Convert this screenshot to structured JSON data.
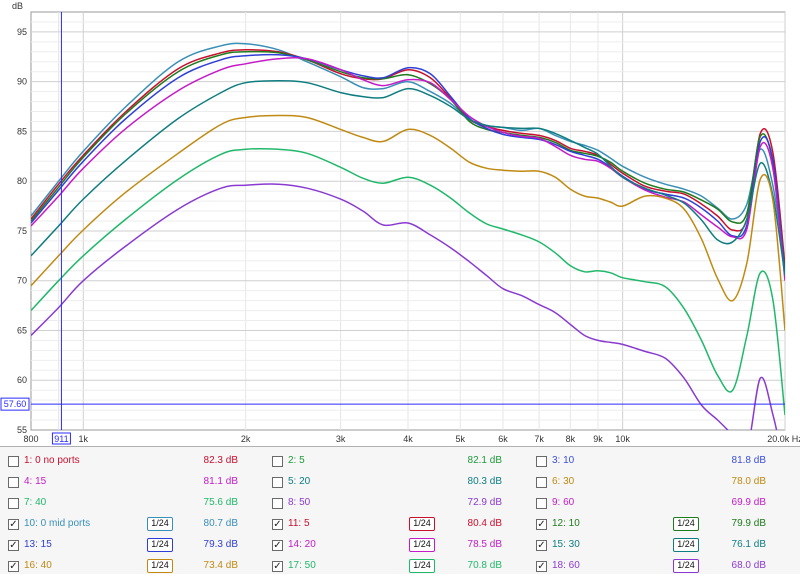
{
  "chart_data": {
    "type": "line",
    "ylabel": "dB",
    "xscale": "log",
    "xlim": [
      800,
      20000
    ],
    "ylim": [
      55,
      97
    ],
    "y_ticks": [
      55,
      60,
      65,
      70,
      75,
      80,
      85,
      90,
      95
    ],
    "x_ticks": [
      {
        "v": 800,
        "label": "800"
      },
      {
        "v": 1000,
        "label": "1k"
      },
      {
        "v": 2000,
        "label": "2k"
      },
      {
        "v": 3000,
        "label": "3k"
      },
      {
        "v": 4000,
        "label": "4k"
      },
      {
        "v": 5000,
        "label": "5k"
      },
      {
        "v": 6000,
        "label": "6k"
      },
      {
        "v": 7000,
        "label": "7k"
      },
      {
        "v": 8000,
        "label": "8k"
      },
      {
        "v": 9000,
        "label": "9k"
      },
      {
        "v": 10000,
        "label": "10k"
      },
      {
        "v": 20000,
        "label": "20.0k Hz"
      }
    ],
    "cursor": {
      "x": 911,
      "x_label": "911",
      "y": 57.6,
      "y_label": "57.60"
    },
    "x": [
      800,
      900,
      1000,
      1200,
      1500,
      1800,
      2000,
      2300,
      2600,
      3000,
      3300,
      3600,
      4000,
      4400,
      4800,
      5200,
      5600,
      6000,
      6500,
      7000,
      7500,
      8000,
      8500,
      9000,
      9500,
      10000,
      11000,
      12000,
      13000,
      14000,
      15000,
      16000,
      17000,
      18000,
      19000,
      20000
    ],
    "series": [
      {
        "name": "10: 0 mid ports",
        "color": "#3a8fb7",
        "values": [
          76.5,
          80,
          83,
          87.5,
          92,
          93.6,
          93.8,
          93.2,
          92,
          90.5,
          89.4,
          89.3,
          90,
          89,
          87.8,
          86.2,
          85.6,
          85.4,
          85.1,
          85.3,
          84.6,
          84,
          83.6,
          83.1,
          82.3,
          81.5,
          80.4,
          79.7,
          79.2,
          78.5,
          77.3,
          76.2,
          77.7,
          83.2,
          79.5,
          71.5
        ]
      },
      {
        "name": "11: 5",
        "color": "#c8102e",
        "values": [
          76.2,
          79.7,
          82.6,
          87,
          91.3,
          92.9,
          93.2,
          93,
          92.2,
          90.8,
          90.3,
          90.3,
          91.2,
          90.4,
          88.3,
          86.2,
          85.5,
          85.1,
          84.8,
          84.6,
          84.1,
          83.3,
          83,
          82.6,
          81.7,
          80.8,
          79.5,
          79,
          78.7,
          77.7,
          76.5,
          75.1,
          76.2,
          84.8,
          82.8,
          71.5
        ]
      },
      {
        "name": "12: 10",
        "color": "#1e7b1e",
        "values": [
          76,
          79.4,
          82.4,
          86.8,
          91,
          92.7,
          93,
          92.9,
          92.2,
          91,
          90.4,
          90.3,
          90.7,
          89.8,
          88.2,
          86,
          85.2,
          84.9,
          84.6,
          84.4,
          83.9,
          83.1,
          82.8,
          82.5,
          81.9,
          81,
          79.8,
          79.2,
          78.9,
          78.1,
          77.2,
          75.9,
          76.8,
          84.5,
          81.8,
          71
        ]
      },
      {
        "name": "13: 15",
        "color": "#2f3fd6",
        "values": [
          75.8,
          79.1,
          82,
          86.3,
          90.4,
          92.2,
          92.6,
          92.7,
          92.3,
          91.2,
          90.6,
          90.4,
          91.4,
          90.8,
          88.5,
          86.3,
          85.3,
          84.7,
          84.4,
          84.2,
          83.7,
          83,
          82.6,
          82.2,
          81.4,
          80.5,
          79.2,
          78.7,
          78.3,
          77.3,
          76,
          74.5,
          75.6,
          84,
          82,
          70.5
        ]
      },
      {
        "name": "14: 20",
        "color": "#c41bc8",
        "values": [
          75.5,
          78.5,
          81.3,
          85.3,
          89.1,
          91.2,
          91.8,
          92.3,
          92.3,
          91.2,
          90.2,
          89.6,
          90.2,
          89.9,
          88.2,
          86.5,
          85.5,
          84.9,
          84.5,
          84.3,
          83.5,
          82.6,
          82.2,
          82,
          81.3,
          80.4,
          79.1,
          78.4,
          77.9,
          76.6,
          75.4,
          74.4,
          75.2,
          83.5,
          81.2,
          70
        ]
      },
      {
        "name": "15: 30",
        "color": "#0f7d80",
        "values": [
          72.5,
          75.5,
          78.2,
          82.1,
          86.3,
          88.9,
          89.9,
          90.1,
          89.9,
          88.9,
          88.5,
          88.4,
          89.3,
          88.6,
          87.5,
          86.2,
          85.6,
          85.4,
          85.3,
          85.3,
          84.8,
          84.1,
          83.4,
          82.7,
          81.5,
          80.4,
          79.3,
          78.6,
          77.8,
          76.1,
          74.1,
          73.9,
          76.2,
          81.8,
          78.5,
          70.5
        ]
      },
      {
        "name": "16: 40",
        "color": "#c08a12",
        "values": [
          69.5,
          72.5,
          75.1,
          78.9,
          82.8,
          85.7,
          86.4,
          86.6,
          86.4,
          85.2,
          84.4,
          84,
          85.2,
          84.6,
          83.3,
          81.9,
          81.3,
          81.1,
          81,
          81,
          80.4,
          79.2,
          78.5,
          78.3,
          77.9,
          77.5,
          78.5,
          78.3,
          77.2,
          74.2,
          70.2,
          68,
          71.8,
          80.2,
          78,
          65
        ]
      },
      {
        "name": "17: 50",
        "color": "#20b86a",
        "values": [
          67,
          70,
          72.5,
          76.2,
          80.2,
          82.7,
          83.2,
          83.2,
          82.8,
          81.4,
          80.3,
          79.8,
          80.4,
          79.6,
          78.3,
          76.8,
          75.7,
          75.2,
          74.6,
          73.9,
          72.8,
          71.5,
          70.9,
          71,
          70.8,
          70.3,
          69.9,
          69.4,
          67.2,
          64,
          60.5,
          59,
          64.5,
          70.8,
          68,
          56.5
        ]
      },
      {
        "name": "18: 60",
        "color": "#8a3ad0",
        "values": [
          64.5,
          67.3,
          70,
          73.5,
          77.2,
          79.3,
          79.6,
          79.7,
          79.3,
          78.2,
          77,
          75.6,
          75.8,
          74.6,
          73.3,
          71.9,
          70.5,
          69.2,
          68.5,
          67.6,
          66.8,
          65.6,
          64.5,
          64,
          63.8,
          63.6,
          62.9,
          62.2,
          60.2,
          57.5,
          56,
          54.5,
          53,
          60.2,
          56.5,
          51
        ]
      }
    ]
  },
  "legend": {
    "rows": [
      [
        {
          "label": "1: 0 no ports",
          "checked": false,
          "smooth": "",
          "value": "82.3 dB",
          "color": "#c8102e"
        },
        {
          "label": "2: 5",
          "checked": false,
          "smooth": "",
          "value": "82.1 dB",
          "color": "#1e9a3a"
        },
        {
          "label": "3: 10",
          "checked": false,
          "smooth": "",
          "value": "81.8 dB",
          "color": "#3a4fd8"
        }
      ],
      [
        {
          "label": "4: 15",
          "checked": false,
          "smooth": "",
          "value": "81.1 dB",
          "color": "#c41bc8"
        },
        {
          "label": "5: 20",
          "checked": false,
          "smooth": "",
          "value": "80.3 dB",
          "color": "#0f7d80"
        },
        {
          "label": "6: 30",
          "checked": false,
          "smooth": "",
          "value": "78.0 dB",
          "color": "#c08a12"
        }
      ],
      [
        {
          "label": "7: 40",
          "checked": false,
          "smooth": "",
          "value": "75.6 dB",
          "color": "#20b86a"
        },
        {
          "label": "8: 50",
          "checked": false,
          "smooth": "",
          "value": "72.9 dB",
          "color": "#8a3ad0"
        },
        {
          "label": "9: 60",
          "checked": false,
          "smooth": "",
          "value": "69.9 dB",
          "color": "#c41bc8"
        }
      ],
      [
        {
          "label": "10: 0 mid ports",
          "checked": true,
          "smooth": "1/24",
          "value": "80.7 dB",
          "color": "#3a8fb7"
        },
        {
          "label": "11: 5",
          "checked": true,
          "smooth": "1/24",
          "value": "80.4 dB",
          "color": "#c8102e"
        },
        {
          "label": "12: 10",
          "checked": true,
          "smooth": "1/24",
          "value": "79.9 dB",
          "color": "#1e7b1e"
        }
      ],
      [
        {
          "label": "13: 15",
          "checked": true,
          "smooth": "1/24",
          "value": "79.3 dB",
          "color": "#2f3fd6"
        },
        {
          "label": "14: 20",
          "checked": true,
          "smooth": "1/24",
          "value": "78.5 dB",
          "color": "#c41bc8"
        },
        {
          "label": "15: 30",
          "checked": true,
          "smooth": "1/24",
          "value": "76.1 dB",
          "color": "#0f7d80"
        }
      ],
      [
        {
          "label": "16: 40",
          "checked": true,
          "smooth": "1/24",
          "value": "73.4 dB",
          "color": "#c08a12"
        },
        {
          "label": "17: 50",
          "checked": true,
          "smooth": "1/24",
          "value": "70.8 dB",
          "color": "#20b86a"
        },
        {
          "label": "18: 60",
          "checked": true,
          "smooth": "1/24",
          "value": "68.0 dB",
          "color": "#8a3ad0"
        }
      ]
    ]
  }
}
